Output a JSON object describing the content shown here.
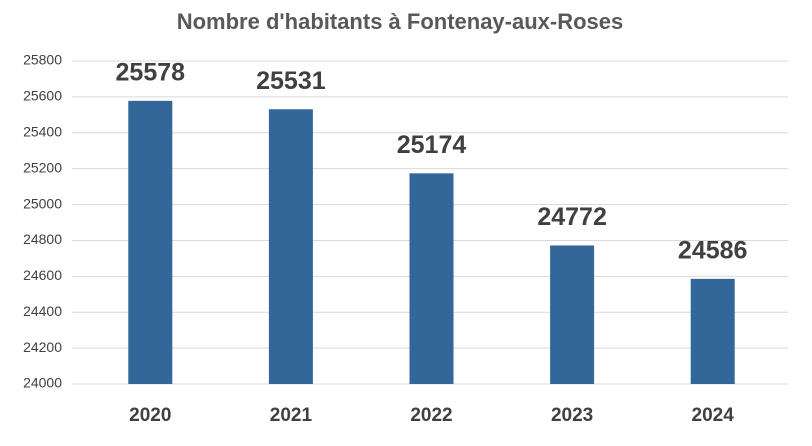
{
  "chart_data": {
    "type": "bar",
    "title": "Nombre d'habitants à Fontenay-aux-Roses",
    "categories": [
      "2020",
      "2021",
      "2022",
      "2023",
      "2024"
    ],
    "values": [
      25578,
      25531,
      25174,
      24772,
      24586
    ],
    "color": "#336699",
    "ylim": [
      24000,
      25800
    ],
    "yticks": [
      24000,
      24200,
      24400,
      24600,
      24800,
      25000,
      25200,
      25400,
      25600,
      25800
    ],
    "grid": true
  }
}
